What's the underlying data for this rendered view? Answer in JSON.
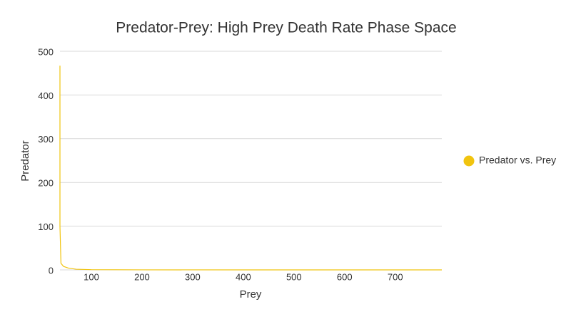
{
  "chart_data": {
    "type": "line",
    "title": "Predator-Prey: High Prey Death Rate Phase Space",
    "x_label": "Prey",
    "y_label": "Predator",
    "series": [
      {
        "name": "Predator vs. Prey",
        "color": "#f1c40f",
        "x": [
          38,
          38,
          38,
          38,
          40,
          45,
          55,
          70,
          100,
          200,
          400,
          600,
          792
        ],
        "values": [
          467,
          350,
          200,
          100,
          15,
          8,
          4,
          1.5,
          0.5,
          0.1,
          0,
          0,
          0
        ]
      }
    ],
    "xlim": [
      38,
      792
    ],
    "ylim": [
      0,
      500
    ],
    "xticks": [
      100,
      200,
      300,
      400,
      500,
      600,
      700
    ],
    "yticks": [
      0,
      100,
      200,
      300,
      400,
      500
    ],
    "grid": true,
    "legend": "right"
  }
}
